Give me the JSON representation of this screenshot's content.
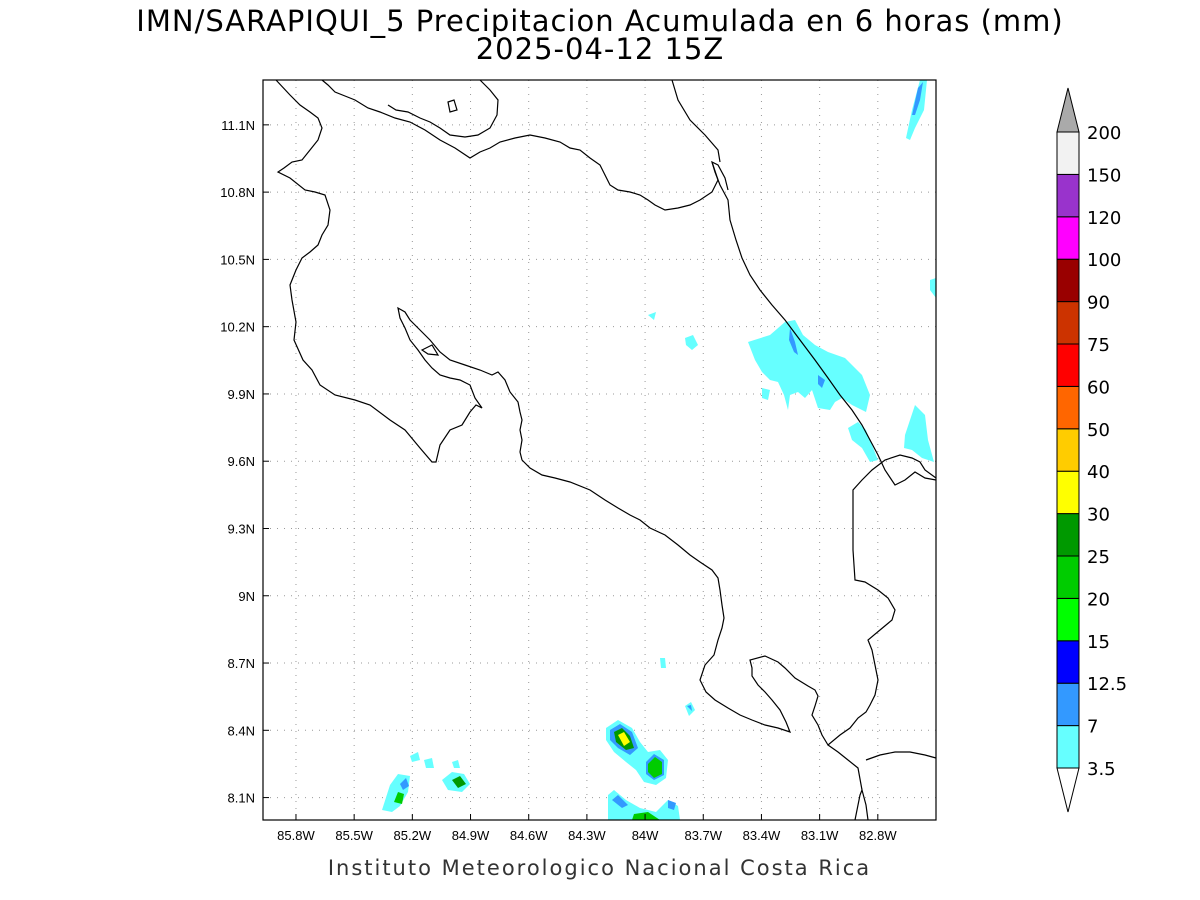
{
  "title_line1": "IMN/SARAPIQUI_5 Precipitacion Acumulada en 6 horas (mm)",
  "title_line2": "2025-04-12 15Z",
  "footer": "Instituto Meteorologico Nacional Costa Rica",
  "map": {
    "lon_range": [
      -85.97,
      -82.5
    ],
    "lat_range": [
      8.0,
      11.3
    ],
    "x_ticks": [
      "85.8W",
      "85.5W",
      "85.2W",
      "84.9W",
      "84.6W",
      "84.3W",
      "84W",
      "83.7W",
      "83.4W",
      "83.1W",
      "82.8W"
    ],
    "y_ticks": [
      "11.1N",
      "10.8N",
      "10.5N",
      "10.2N",
      "9.9N",
      "9.6N",
      "9.3N",
      "9N",
      "8.7N",
      "8.4N",
      "8.1N"
    ]
  },
  "colorbar": {
    "labels": [
      "3.5",
      "7",
      "12.5",
      "15",
      "20",
      "25",
      "30",
      "40",
      "50",
      "60",
      "75",
      "90",
      "100",
      "120",
      "150",
      "200"
    ],
    "colors": [
      "#66ffff",
      "#3399ff",
      "#0000ff",
      "#00ff00",
      "#00cc00",
      "#009900",
      "#ffff00",
      "#ffcc00",
      "#ff6600",
      "#ff0000",
      "#cc3300",
      "#990000",
      "#ff00ff",
      "#9933cc",
      "#f2f2f2"
    ],
    "over_color": "#aaaaaa",
    "under_color": "#ffffff"
  }
}
